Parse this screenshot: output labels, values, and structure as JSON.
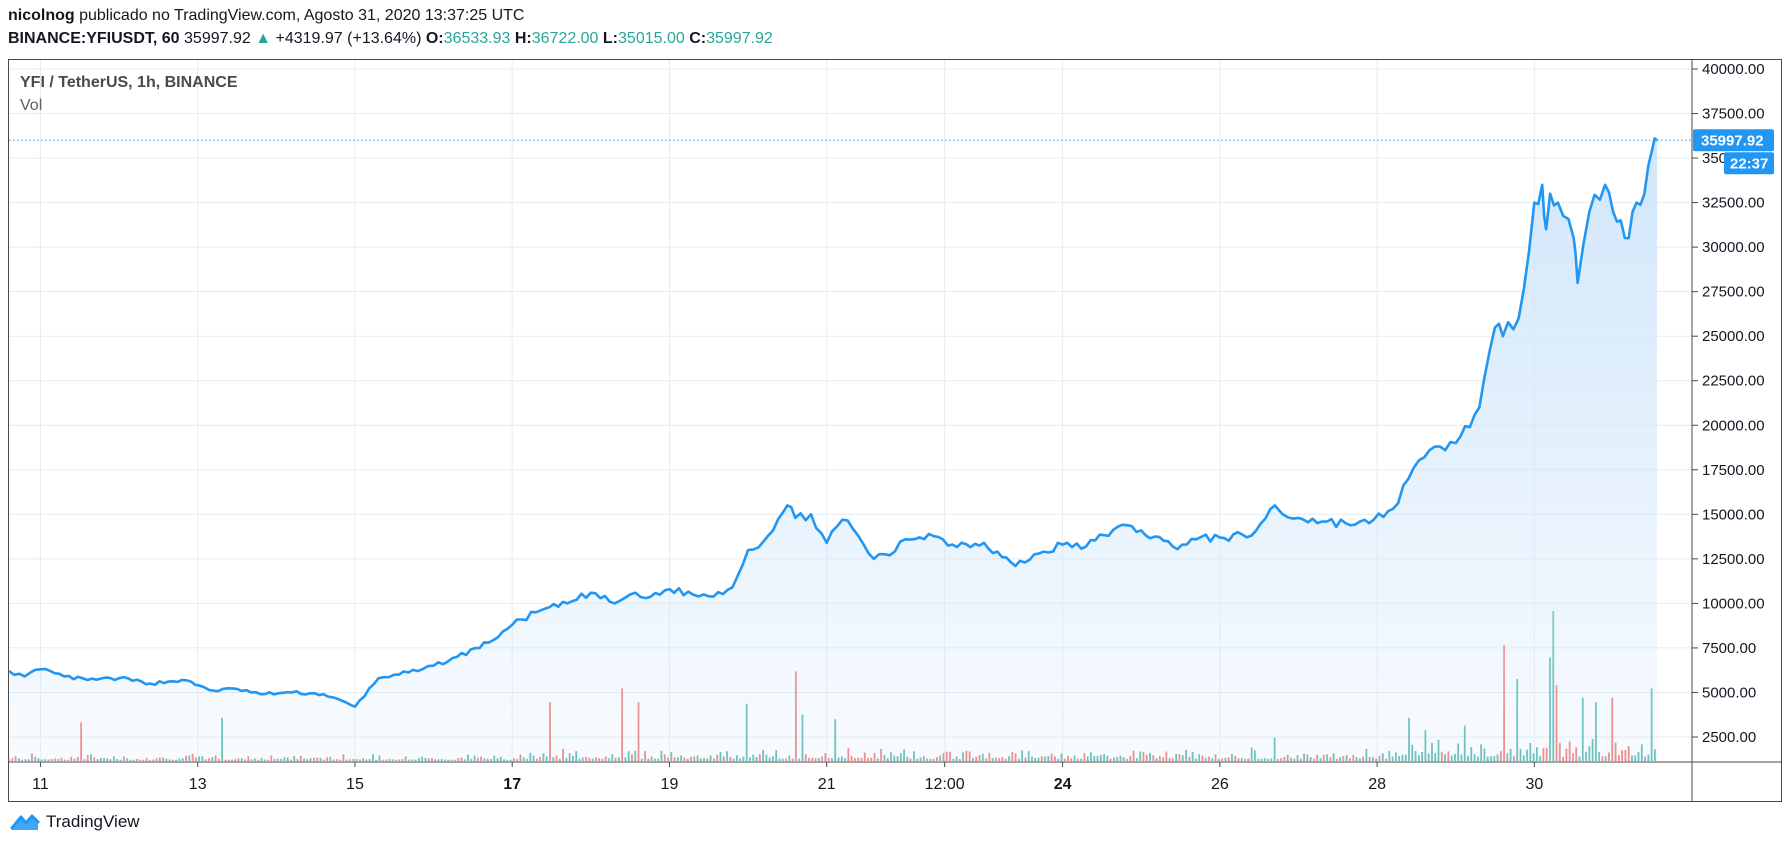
{
  "header": {
    "author": "nicolnog",
    "published_text": "publicado no TradingView.com, Agosto 31, 2020 13:37:25 UTC",
    "symbol": "BINANCE:YFIUSDT, 60",
    "last": "35997.92",
    "change": "+4319.97 (+13.64%)",
    "o_label": "O:",
    "o_value": "36533.93",
    "h_label": "H:",
    "h_value": "36722.00",
    "l_label": "L:",
    "l_value": "35015.00",
    "c_label": "C:",
    "c_value": "35997.92"
  },
  "legend": {
    "title": "YFI / TetherUS, 1h, BINANCE",
    "vol": "Vol"
  },
  "price_badge": {
    "value": "35997.92",
    "countdown": "22:37"
  },
  "brand": {
    "name": "TradingView"
  },
  "colors": {
    "line": "#2196f3",
    "area_top": "#cfe5fa",
    "vol_up": "#26a69a",
    "vol_down": "#ef5350",
    "grid": "#e6ecf0"
  },
  "chart_data": {
    "type": "area",
    "title": "YFI / TetherUS, 1h, BINANCE",
    "ylim": [
      0,
      41000
    ],
    "y_ticks": [
      2500,
      5000,
      7500,
      10000,
      12500,
      15000,
      17500,
      20000,
      22500,
      25000,
      27500,
      30000,
      32500,
      35000,
      37500,
      40000
    ],
    "y_tick_labels": [
      "2500.00",
      "5000.00",
      "7500.00",
      "10000.00",
      "12500.00",
      "15000.00",
      "17500.00",
      "20000.00",
      "22500.00",
      "25000.00",
      "27500.00",
      "30000.00",
      "32500.00",
      "35000.00",
      "37500.00",
      "40000.00"
    ],
    "x_range_days": [
      10.6,
      31.56
    ],
    "x_ticks": [
      11,
      13,
      15,
      17,
      19,
      21,
      22.5,
      24,
      26,
      28,
      30
    ],
    "x_tick_labels": [
      "11",
      "13",
      "15",
      "17",
      "19",
      "21",
      "12:00",
      "24",
      "26",
      "28",
      "30"
    ],
    "x_tick_bold": [
      false,
      false,
      false,
      true,
      false,
      false,
      false,
      true,
      false,
      false,
      false
    ],
    "series": [
      {
        "x": [
          10.6,
          10.8,
          11.0,
          11.3,
          11.6,
          12.0,
          12.4,
          12.8,
          13.2,
          13.5,
          13.8,
          14.2,
          14.6,
          15.0,
          15.3,
          15.5,
          15.8,
          16.0,
          16.3,
          16.7,
          17.0,
          17.3,
          17.7,
          18.0,
          18.3,
          18.5,
          18.7,
          19.0,
          19.3,
          19.5,
          19.8,
          20.0,
          20.2,
          20.5,
          20.6,
          20.8,
          21.0,
          21.2,
          21.4,
          21.6,
          21.8,
          22.0,
          22.3,
          22.6,
          23.0,
          23.4,
          23.7,
          24.0,
          24.3,
          24.7,
          25.0,
          25.4,
          25.7,
          26.0,
          26.4,
          26.7,
          26.8,
          27.0,
          27.3,
          27.6,
          27.9,
          28.2,
          28.4,
          28.6,
          28.8,
          29.0,
          29.3,
          29.5,
          29.6,
          29.8,
          30.0,
          30.1,
          30.15,
          30.2,
          30.3,
          30.5,
          30.55,
          30.7,
          30.9,
          31.0,
          31.1,
          31.2,
          31.3,
          31.4,
          31.5,
          31.56
        ],
        "y": [
          6200,
          5900,
          6300,
          5900,
          5700,
          5800,
          5500,
          5700,
          5100,
          5200,
          4900,
          5000,
          4900,
          4200,
          5800,
          6000,
          6200,
          6500,
          7000,
          7800,
          8800,
          9500,
          10000,
          10600,
          10000,
          10500,
          10300,
          10800,
          10500,
          10400,
          10900,
          13000,
          13500,
          15500,
          14800,
          15000,
          13400,
          14700,
          13800,
          12500,
          12700,
          13600,
          13900,
          13300,
          13400,
          12100,
          12800,
          13300,
          13200,
          14300,
          14100,
          13200,
          13600,
          13700,
          13800,
          15500,
          15000,
          14800,
          14600,
          14500,
          14500,
          15300,
          17000,
          18200,
          18800,
          19000,
          21000,
          25500,
          25000,
          26000,
          32500,
          33500,
          31000,
          33000,
          32500,
          30500,
          28000,
          32000,
          33500,
          32000,
          31500,
          30500,
          32500,
          33000,
          35500,
          35997.92
        ]
      }
    ],
    "volume": {
      "step_days": 0.0417,
      "seed": 7,
      "note_spikes": [
        [
          11.5,
          2500
        ],
        [
          13.3,
          2800
        ],
        [
          17.5,
          3800
        ],
        [
          18.4,
          4700
        ],
        [
          18.6,
          3800
        ],
        [
          20.0,
          3700
        ],
        [
          20.6,
          5800
        ],
        [
          20.7,
          3000
        ],
        [
          21.1,
          2700
        ],
        [
          26.7,
          1500
        ],
        [
          28.4,
          2800
        ],
        [
          28.6,
          2000
        ],
        [
          29.1,
          2300
        ],
        [
          29.6,
          7500
        ],
        [
          29.8,
          5300
        ],
        [
          30.2,
          6700
        ],
        [
          30.25,
          9700
        ],
        [
          30.3,
          4900
        ],
        [
          30.6,
          4100
        ],
        [
          30.8,
          3800
        ],
        [
          31.0,
          4100
        ],
        [
          31.5,
          4700
        ]
      ],
      "ymax": 11000
    },
    "last_price": 35997.92,
    "grid": true
  }
}
